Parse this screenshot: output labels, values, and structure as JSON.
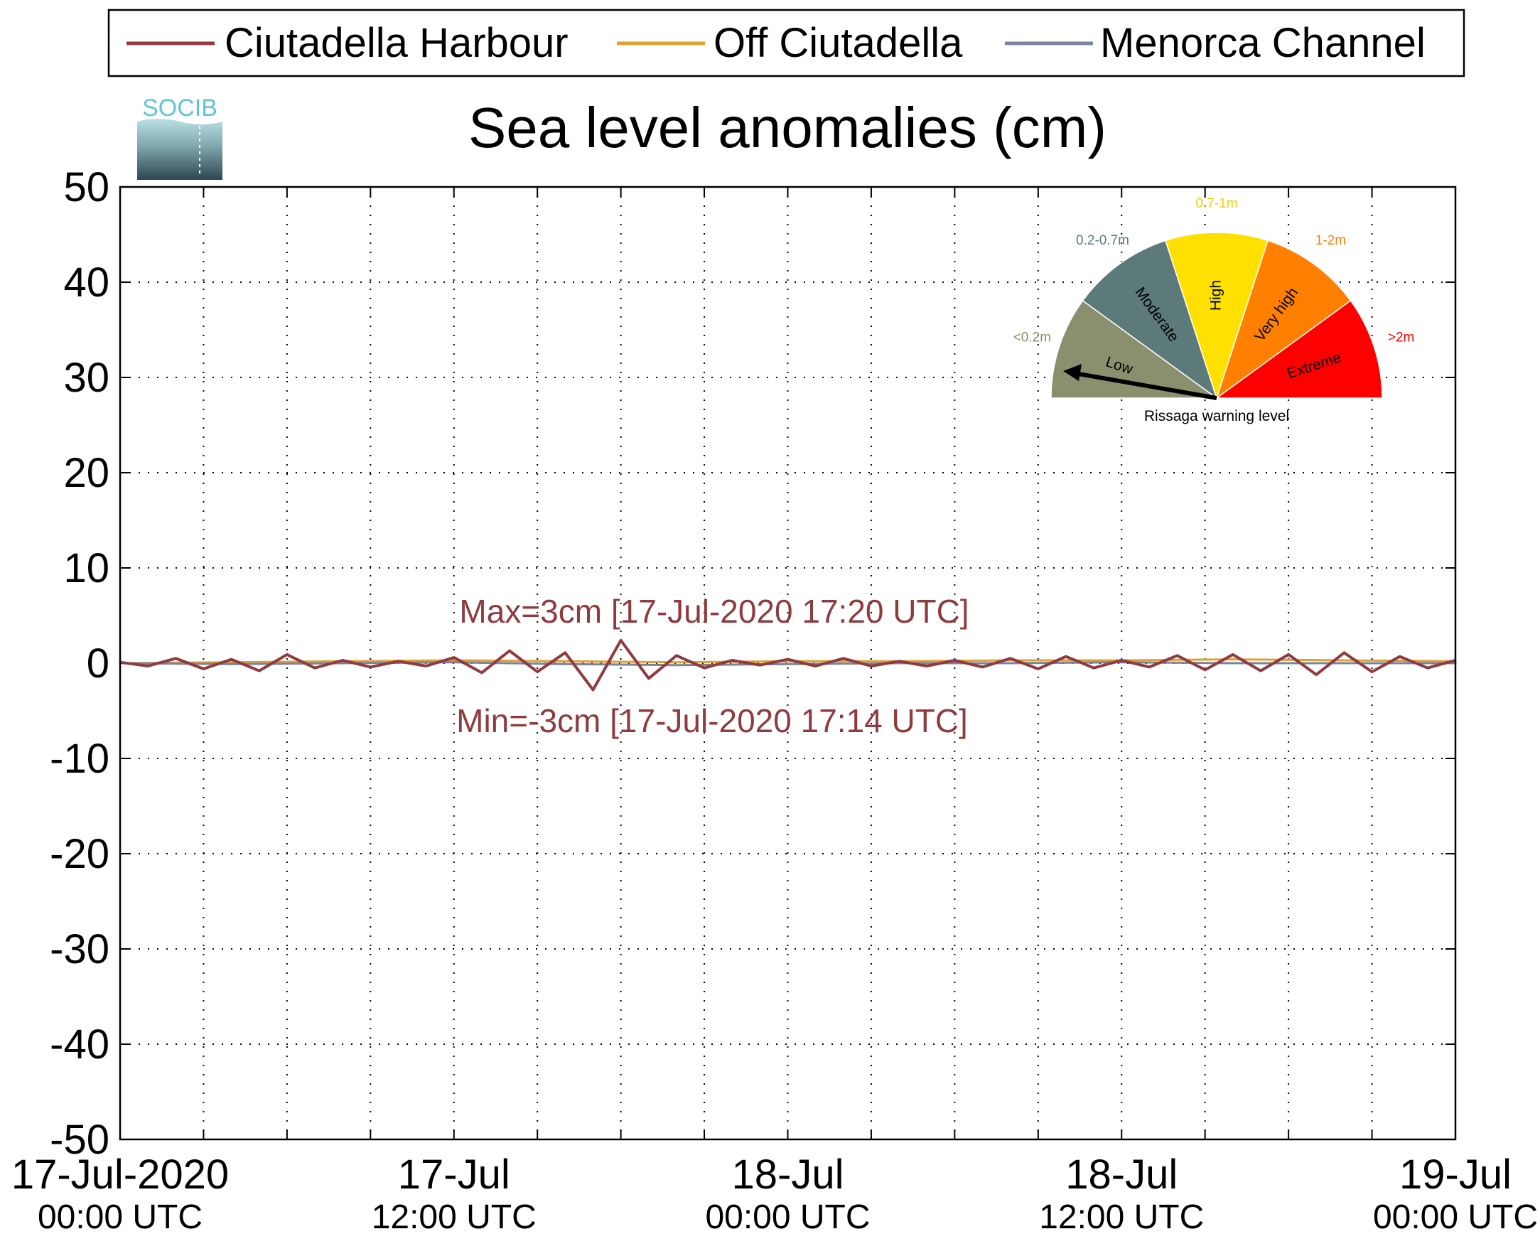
{
  "chart_data": {
    "type": "line",
    "title": "Sea level anomalies (cm)",
    "xlabel": "",
    "ylabel": "",
    "ylim": [
      -50,
      50
    ],
    "xlim": [
      "2020-07-17T00:00Z",
      "2020-07-19T00:00Z"
    ],
    "yticks": [
      "50",
      "40",
      "30",
      "20",
      "10",
      "0",
      "-10",
      "-20",
      "-30",
      "-40",
      "-50"
    ],
    "xticks": [
      {
        "x": "2020-07-17T00:00Z",
        "date": "17-Jul-2020",
        "time": "00:00 UTC"
      },
      {
        "x": "2020-07-17T12:00Z",
        "date": "17-Jul",
        "time": "12:00 UTC"
      },
      {
        "x": "2020-07-18T00:00Z",
        "date": "18-Jul",
        "time": "00:00 UTC"
      },
      {
        "x": "2020-07-18T12:00Z",
        "date": "18-Jul",
        "time": "12:00 UTC"
      },
      {
        "x": "2020-07-19T00:00Z",
        "date": "19-Jul",
        "time": "00:00 UTC"
      }
    ],
    "grid": true,
    "legend": {
      "position": "top",
      "entries": [
        "Ciutadella Harbour",
        "Off Ciutadella",
        "Menorca Channel"
      ]
    },
    "series": [
      {
        "name": "Ciutadella Harbour",
        "color": "#8f3b3f",
        "x": [
          "2020-07-17T00:00Z",
          "2020-07-17T01:00Z",
          "2020-07-17T02:00Z",
          "2020-07-17T03:00Z",
          "2020-07-17T04:00Z",
          "2020-07-17T05:00Z",
          "2020-07-17T06:00Z",
          "2020-07-17T07:00Z",
          "2020-07-17T08:00Z",
          "2020-07-17T09:00Z",
          "2020-07-17T10:00Z",
          "2020-07-17T11:00Z",
          "2020-07-17T12:00Z",
          "2020-07-17T13:00Z",
          "2020-07-17T14:00Z",
          "2020-07-17T15:00Z",
          "2020-07-17T16:00Z",
          "2020-07-17T17:00Z",
          "2020-07-17T18:00Z",
          "2020-07-17T19:00Z",
          "2020-07-17T20:00Z",
          "2020-07-17T21:00Z",
          "2020-07-17T22:00Z",
          "2020-07-17T23:00Z",
          "2020-07-18T00:00Z",
          "2020-07-18T01:00Z",
          "2020-07-18T02:00Z",
          "2020-07-18T03:00Z",
          "2020-07-18T04:00Z",
          "2020-07-18T05:00Z",
          "2020-07-18T06:00Z",
          "2020-07-18T07:00Z",
          "2020-07-18T08:00Z",
          "2020-07-18T09:00Z",
          "2020-07-18T10:00Z",
          "2020-07-18T11:00Z",
          "2020-07-18T12:00Z",
          "2020-07-18T13:00Z",
          "2020-07-18T14:00Z",
          "2020-07-18T15:00Z",
          "2020-07-18T16:00Z",
          "2020-07-18T17:00Z",
          "2020-07-18T18:00Z",
          "2020-07-18T19:00Z",
          "2020-07-18T20:00Z",
          "2020-07-18T21:00Z",
          "2020-07-18T22:00Z",
          "2020-07-18T23:00Z",
          "2020-07-19T00:00Z"
        ],
        "y": [
          0.1,
          -0.3,
          0.5,
          -0.6,
          0.4,
          -0.8,
          0.9,
          -0.5,
          0.3,
          -0.4,
          0.2,
          -0.3,
          0.6,
          -1.0,
          1.3,
          -0.9,
          1.1,
          -2.8,
          2.4,
          -1.6,
          0.8,
          -0.5,
          0.3,
          -0.2,
          0.4,
          -0.3,
          0.5,
          -0.3,
          0.2,
          -0.3,
          0.3,
          -0.4,
          0.5,
          -0.6,
          0.7,
          -0.5,
          0.3,
          -0.4,
          0.8,
          -0.7,
          0.9,
          -0.8,
          0.9,
          -1.2,
          1.1,
          -0.9,
          0.7,
          -0.5,
          0.3
        ]
      },
      {
        "name": "Off Ciutadella",
        "color": "#e0a030",
        "x": [
          "2020-07-17T00:00Z",
          "2020-07-17T04:00Z",
          "2020-07-17T08:00Z",
          "2020-07-17T12:00Z",
          "2020-07-17T16:00Z",
          "2020-07-17T20:00Z",
          "2020-07-18T00:00Z",
          "2020-07-18T04:00Z",
          "2020-07-18T08:00Z",
          "2020-07-18T12:00Z",
          "2020-07-18T16:00Z",
          "2020-07-18T20:00Z",
          "2020-07-19T00:00Z"
        ],
        "y": [
          0.0,
          0.1,
          0.2,
          0.3,
          0.2,
          0.1,
          0.2,
          0.2,
          0.3,
          0.3,
          0.4,
          0.3,
          0.2
        ]
      },
      {
        "name": "Menorca Channel",
        "color": "#7a84a0",
        "x": [
          "2020-07-17T00:00Z",
          "2020-07-17T04:00Z",
          "2020-07-17T08:00Z",
          "2020-07-17T12:00Z",
          "2020-07-17T16:00Z",
          "2020-07-17T20:00Z",
          "2020-07-18T00:00Z",
          "2020-07-18T04:00Z",
          "2020-07-18T08:00Z",
          "2020-07-18T12:00Z",
          "2020-07-18T16:00Z",
          "2020-07-18T20:00Z",
          "2020-07-19T00:00Z"
        ],
        "y": [
          0.0,
          -0.1,
          0.0,
          0.1,
          -0.1,
          -0.2,
          -0.1,
          0.0,
          0.0,
          0.1,
          0.0,
          0.0,
          0.0
        ]
      }
    ],
    "annotations": {
      "max": "Max=3cm [17-Jul-2020 17:20 UTC]",
      "min": "Min=-3cm [17-Jul-2020 17:14 UTC]",
      "color": "#8f3b3f"
    }
  },
  "gauge": {
    "title": "Rissaga warning level",
    "current_level": "Low",
    "segments": [
      {
        "label": "Low",
        "range": "<0.2m",
        "color": "#8a8f6e",
        "range_color": "#8a8f6e"
      },
      {
        "label": "Moderate",
        "range": "0.2-0.7m",
        "color": "#5d7a7a",
        "range_color": "#5d7a7a"
      },
      {
        "label": "High",
        "range": "0.7-1m",
        "color": "#ffe000",
        "range_color": "#f0d000"
      },
      {
        "label": "Very high",
        "range": "1-2m",
        "color": "#ff8000",
        "range_color": "#ff8000"
      },
      {
        "label": "Extreme",
        "range": ">2m",
        "color": "#ff0000",
        "range_color": "#ff0000"
      }
    ]
  },
  "logo": {
    "text": "SOCIB",
    "text_color": "#5ec6d8"
  }
}
